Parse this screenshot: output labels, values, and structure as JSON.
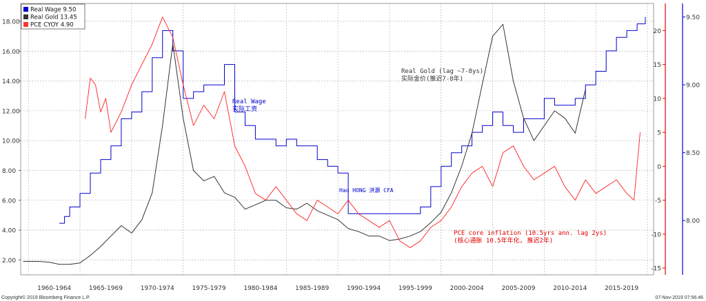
{
  "chart_data": {
    "type": "line",
    "x_periods": [
      "1960-1964",
      "1965-1969",
      "1970-1974",
      "1975-1979",
      "1980-1984",
      "1985-1989",
      "1990-1994",
      "1995-1999",
      "2000-2004",
      "2005-2009",
      "2010-2014",
      "2015-2019"
    ],
    "axes": {
      "left": {
        "ticks": [
          2,
          4,
          6,
          8,
          10,
          12,
          14,
          16,
          18
        ],
        "tick_labels": [
          "2.00",
          "4.00",
          "6.00",
          "8.00",
          "10.00",
          "12.00",
          "14.00",
          "16.00",
          "18.00"
        ],
        "range": [
          1.0,
          19.2
        ],
        "color": "#333333"
      },
      "right1": {
        "ticks": [
          -15,
          -10,
          -5,
          0,
          5,
          10,
          15,
          20
        ],
        "tick_labels": [
          "-15",
          "-10",
          "-5",
          "0",
          "5",
          "10",
          "15",
          "20"
        ],
        "range": [
          -16,
          24
        ],
        "color": "#e00000"
      },
      "right2": {
        "ticks": [
          8.0,
          8.5,
          9.0,
          9.5
        ],
        "tick_labels": [
          "8.00",
          "8.50",
          "9.00",
          "9.50"
        ],
        "range": [
          7.6,
          9.6
        ],
        "color": "#0000cc"
      }
    },
    "legend": {
      "position": "top-left",
      "items": [
        {
          "name": "Real Wage",
          "value": "9.50",
          "color": "#0000cc"
        },
        {
          "name": "Real Gold",
          "value": "13.45",
          "color": "#333333"
        },
        {
          "name": "PCE CYOY",
          "value": "4.90",
          "color": "#ff3333"
        }
      ]
    },
    "series": [
      {
        "name": "Real Wage",
        "axis": "right2",
        "color": "#0000cc",
        "x": [
          1963.0,
          1963.5,
          1964,
          1965,
          1966,
          1967,
          1968,
          1969,
          1970,
          1971,
          1972,
          1973,
          1974,
          1975,
          1976,
          1977,
          1978,
          1979,
          1980,
          1981,
          1982,
          1983,
          1984,
          1985,
          1986,
          1987,
          1988,
          1989,
          1990,
          1991,
          1992,
          1993,
          1994,
          1995,
          1996,
          1997,
          1998,
          1999,
          2000,
          2001,
          2002,
          2003,
          2004,
          2005,
          2006,
          2007,
          2008,
          2009,
          2010,
          2011,
          2012,
          2013,
          2014,
          2015,
          2016,
          2017,
          2018,
          2019,
          2019.8
        ],
        "y": [
          7.98,
          8.03,
          8.1,
          8.2,
          8.35,
          8.45,
          8.55,
          8.75,
          8.8,
          8.95,
          9.2,
          9.4,
          9.25,
          8.9,
          8.95,
          9.0,
          9.0,
          9.15,
          8.8,
          8.7,
          8.6,
          8.6,
          8.55,
          8.6,
          8.55,
          8.55,
          8.45,
          8.4,
          8.35,
          8.05,
          8.05,
          8.05,
          8.05,
          8.05,
          8.05,
          8.05,
          8.1,
          8.25,
          8.4,
          8.5,
          8.55,
          8.65,
          8.7,
          8.8,
          8.7,
          8.65,
          8.75,
          8.75,
          8.9,
          8.85,
          8.85,
          8.9,
          9.0,
          9.1,
          9.25,
          9.35,
          9.4,
          9.45,
          9.5
        ]
      },
      {
        "name": "Real Gold",
        "axis": "left",
        "color": "#333333",
        "x": [
          1959.5,
          1961,
          1962,
          1963,
          1964,
          1965,
          1966,
          1967,
          1968,
          1969,
          1970,
          1971,
          1972,
          1973,
          1974,
          1975,
          1976,
          1977,
          1978,
          1979,
          1980,
          1981,
          1982,
          1983,
          1984,
          1985,
          1986,
          1987,
          1988,
          1989,
          1990,
          1991,
          1992,
          1993,
          1994,
          1995,
          1996,
          1997,
          1998,
          1999,
          2000,
          2001,
          2002,
          2003,
          2004,
          2005,
          2006,
          2007,
          2008,
          2009,
          2010,
          2011,
          2012,
          2013,
          2014
        ],
        "y": [
          1.9,
          1.9,
          1.85,
          1.7,
          1.7,
          1.8,
          2.3,
          2.9,
          3.6,
          4.3,
          3.8,
          4.7,
          6.5,
          11.0,
          16.5,
          11.5,
          8.0,
          7.3,
          7.6,
          6.5,
          6.2,
          5.4,
          5.7,
          6.0,
          6.0,
          5.5,
          5.4,
          5.8,
          5.3,
          5.0,
          4.7,
          4.1,
          3.9,
          3.6,
          3.6,
          3.3,
          3.4,
          3.6,
          3.9,
          4.5,
          5.2,
          6.5,
          8.3,
          10.5,
          13.8,
          17.0,
          17.8,
          14.0,
          11.5,
          10.0,
          11.0,
          12.0,
          11.5,
          10.5,
          13.45
        ]
      },
      {
        "name": "PCE CYOY",
        "axis": "right1",
        "color": "#ff3333",
        "x": [
          1965.5,
          1966,
          1966.5,
          1967,
          1967.5,
          1968,
          1969,
          1970,
          1971,
          1972,
          1973,
          1974,
          1975,
          1976,
          1977,
          1978,
          1979,
          1980,
          1981,
          1982,
          1983,
          1984,
          1985,
          1986,
          1987,
          1988,
          1989,
          1990,
          1991,
          1992,
          1993,
          1994,
          1995,
          1996,
          1997,
          1998,
          1999,
          2000,
          2001,
          2002,
          2003,
          2004,
          2005,
          2006,
          2007,
          2008,
          2009,
          2010,
          2011,
          2012,
          2013,
          2014,
          2015,
          2016,
          2017,
          2018,
          2018.7,
          2019.3
        ],
        "y": [
          7,
          13,
          12,
          8,
          10,
          5,
          8,
          12,
          15,
          18,
          22,
          19,
          12,
          6,
          9,
          7,
          11,
          3,
          0,
          -4,
          -5,
          -3,
          -5,
          -7,
          -8,
          -5,
          -6,
          -7,
          -5,
          -7,
          -8,
          -9,
          -8,
          -11,
          -12,
          -11,
          -9,
          -8,
          -6,
          -3,
          -1,
          0,
          -3,
          2,
          3,
          0,
          -2,
          -1,
          0,
          -3,
          -5,
          -2,
          -4,
          -3,
          -2,
          -4,
          -5,
          5
        ]
      }
    ],
    "annotations": [
      {
        "lines": [
          "Real Wage",
          "实际工资"
        ],
        "color": "#0000cc"
      },
      {
        "lines": [
          "Real Gold (lag ~7-8ys)",
          "实际金价(推迟7-8年)"
        ],
        "color": "#333333"
      },
      {
        "lines": [
          "Hao HONG 洪灏 CFA"
        ],
        "color": "#0000cc"
      },
      {
        "lines": [
          "PCE core inflation (10.5yrs ann. lag 2ys)",
          "(核心通胀 10.5年年化, 推迟2年)"
        ],
        "color": "#e00000"
      }
    ]
  },
  "footer": {
    "copyright": "Copyright© 2019 Bloomberg Finance L.P.",
    "timestamp": "07-Nov-2019 07:56:46"
  }
}
